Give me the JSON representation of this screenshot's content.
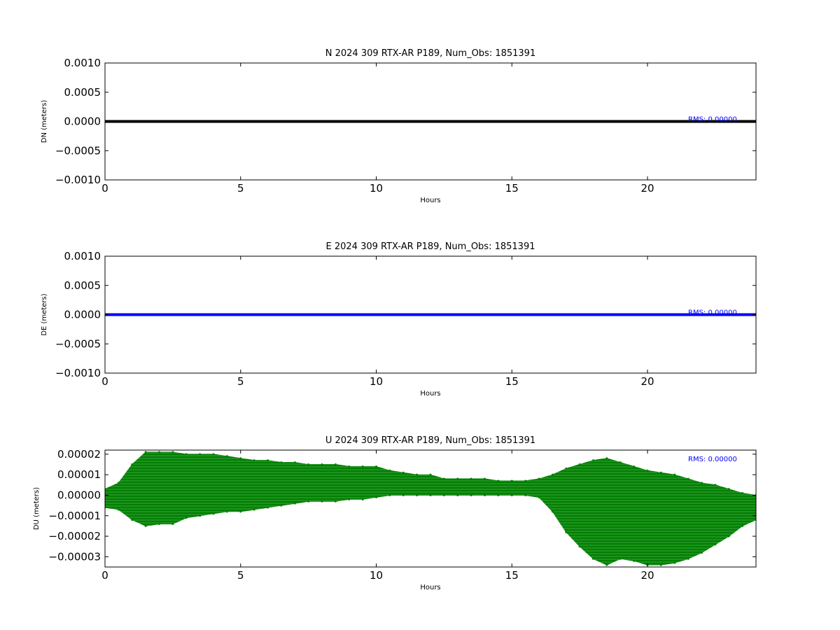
{
  "chart_data": [
    {
      "type": "line",
      "title": "N 2024 309 RTX-AR  P189, Num_Obs: 1851391",
      "xlabel": "Hours",
      "ylabel": "DN (meters)",
      "xlim": [
        0,
        24
      ],
      "ylim": [
        -0.001,
        0.001
      ],
      "xticks": [
        0,
        5,
        10,
        15,
        20
      ],
      "xtick_labels": [
        "0",
        "5",
        "10",
        "15",
        "20"
      ],
      "yticks": [
        0.001,
        0.0005,
        0.0,
        -0.0005,
        -0.001
      ],
      "ytick_labels": [
        "0.0010",
        "0.0005",
        "0.0000",
        "−0.0005",
        "−0.0010"
      ],
      "annotation": "RMS:  0.00000",
      "series": [
        {
          "color": "#000000",
          "x": [
            0,
            24
          ],
          "y": [
            0,
            0
          ]
        }
      ],
      "grid": false
    },
    {
      "type": "line",
      "title": "E 2024 309 RTX-AR  P189, Num_Obs: 1851391",
      "xlabel": "Hours",
      "ylabel": "DE (meters)",
      "xlim": [
        0,
        24
      ],
      "ylim": [
        -0.001,
        0.001
      ],
      "xticks": [
        0,
        5,
        10,
        15,
        20
      ],
      "xtick_labels": [
        "0",
        "5",
        "10",
        "15",
        "20"
      ],
      "yticks": [
        0.001,
        0.0005,
        0.0,
        -0.0005,
        -0.001
      ],
      "ytick_labels": [
        "0.0010",
        "0.0005",
        "0.0000",
        "−0.0005",
        "−0.0010"
      ],
      "annotation": "RMS:  0.00000",
      "series": [
        {
          "color": "#0000ff",
          "x": [
            0,
            24
          ],
          "y": [
            0,
            0
          ]
        }
      ],
      "grid": false
    },
    {
      "type": "area",
      "title": "U 2024 309 RTX-AR  P189, Num_Obs: 1851391",
      "xlabel": "Hours",
      "ylabel": "DU (meters)",
      "xlim": [
        0,
        24
      ],
      "ylim": [
        -3.5e-05,
        2.2e-05
      ],
      "xticks": [
        0,
        5,
        10,
        15,
        20
      ],
      "xtick_labels": [
        "0",
        "5",
        "10",
        "15",
        "20"
      ],
      "yticks": [
        2e-05,
        1e-05,
        0.0,
        -1e-05,
        -2e-05,
        -3e-05
      ],
      "ytick_labels": [
        "0.00002",
        "0.00001",
        "0.00000",
        "−0.00001",
        "−0.00002",
        "−0.00003"
      ],
      "annotation": "RMS:  0.00000",
      "series": [
        {
          "color": "#008000",
          "x": [
            0,
            0.5,
            1,
            1.5,
            2,
            2.5,
            3,
            3.5,
            4,
            4.5,
            5,
            5.5,
            6,
            6.5,
            7,
            7.5,
            8,
            8.5,
            9,
            9.5,
            10,
            10.5,
            11,
            11.5,
            12,
            12.5,
            13,
            13.5,
            14,
            14.5,
            15,
            15.5,
            16,
            16.5,
            17,
            17.5,
            18,
            18.5,
            19,
            19.5,
            20,
            20.5,
            21,
            21.5,
            22,
            22.5,
            23,
            23.5,
            24
          ],
          "upper": [
            3e-06,
            6e-06,
            1.5e-05,
            2.1e-05,
            2.1e-05,
            2.1e-05,
            2e-05,
            2e-05,
            2e-05,
            1.9e-05,
            1.8e-05,
            1.7e-05,
            1.7e-05,
            1.6e-05,
            1.6e-05,
            1.5e-05,
            1.5e-05,
            1.5e-05,
            1.4e-05,
            1.4e-05,
            1.4e-05,
            1.2e-05,
            1.1e-05,
            1e-05,
            1e-05,
            8e-06,
            8e-06,
            8e-06,
            8e-06,
            7e-06,
            7e-06,
            7e-06,
            8e-06,
            1e-05,
            1.3e-05,
            1.5e-05,
            1.7e-05,
            1.8e-05,
            1.6e-05,
            1.4e-05,
            1.2e-05,
            1.1e-05,
            1e-05,
            8e-06,
            6e-06,
            5e-06,
            3e-06,
            1e-06,
            0.0
          ],
          "lower": [
            -6e-06,
            -7e-06,
            -1.2e-05,
            -1.5e-05,
            -1.4e-05,
            -1.4e-05,
            -1.1e-05,
            -1e-05,
            -9e-06,
            -8e-06,
            -8e-06,
            -7e-06,
            -6e-06,
            -5e-06,
            -4e-06,
            -3e-06,
            -3e-06,
            -3e-06,
            -2e-06,
            -2e-06,
            -1e-06,
            0.0,
            0.0,
            0.0,
            0.0,
            0.0,
            0.0,
            0.0,
            0.0,
            0.0,
            0.0,
            0.0,
            -1e-06,
            -8e-06,
            -1.8e-05,
            -2.5e-05,
            -3.1e-05,
            -3.4e-05,
            -3.1e-05,
            -3.2e-05,
            -3.4e-05,
            -3.4e-05,
            -3.3e-05,
            -3.1e-05,
            -2.8e-05,
            -2.4e-05,
            -2e-05,
            -1.5e-05,
            -1.2e-05
          ]
        }
      ],
      "grid": false
    }
  ]
}
